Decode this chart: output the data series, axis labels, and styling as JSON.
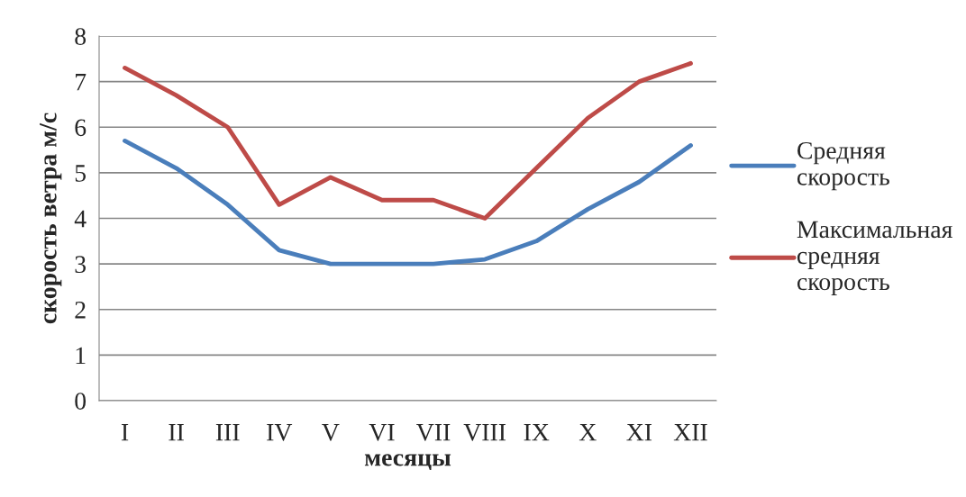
{
  "chart_data": {
    "type": "line",
    "xlabel": "месяцы",
    "ylabel": "скорость ветра м/с",
    "categories": [
      "I",
      "II",
      "III",
      "IV",
      "V",
      "VI",
      "VII",
      "VIII",
      "IX",
      "X",
      "XI",
      "XII"
    ],
    "series": [
      {
        "name": "Средняя\nскорость",
        "color": "#4a7ebb",
        "values": [
          5.7,
          5.1,
          4.3,
          3.3,
          3.0,
          3.0,
          3.0,
          3.1,
          3.5,
          4.2,
          4.8,
          5.6
        ]
      },
      {
        "name": "Максимальная\nсредняя\nскорость",
        "color": "#be4b48",
        "values": [
          7.3,
          6.7,
          6.0,
          4.3,
          4.9,
          4.4,
          4.4,
          4.0,
          5.1,
          6.2,
          7.0,
          7.4
        ]
      }
    ],
    "ylim": [
      0,
      8
    ],
    "yticks": [
      0,
      1,
      2,
      3,
      4,
      5,
      6,
      7,
      8
    ],
    "grid": "y",
    "legend": "right",
    "marker": "none",
    "line_style": "solid"
  }
}
